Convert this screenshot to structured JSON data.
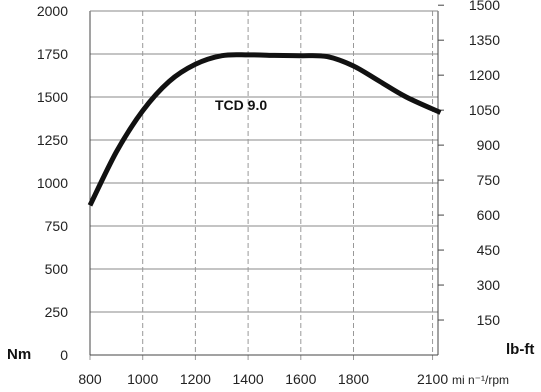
{
  "chart_data": {
    "type": "line",
    "xlabel": "mi n⁻¹/rpm",
    "ylabel": "Nm",
    "ylabel_right": "lb-ft",
    "xlim": [
      800,
      2130
    ],
    "ylim": [
      0,
      2000
    ],
    "ylim_right_note": "right axis shows same curve in lb-ft",
    "x_ticks": [
      800,
      1000,
      1200,
      1400,
      1600,
      1800,
      2100
    ],
    "y_ticks": [
      0,
      250,
      500,
      750,
      1000,
      1250,
      1500,
      1750,
      2000
    ],
    "y_ticks_right": [
      150,
      300,
      450,
      600,
      750,
      900,
      1050,
      1200,
      1350,
      1500
    ],
    "grid": true,
    "series": [
      {
        "name": "TCD 9.0",
        "x": [
          800,
          900,
          1000,
          1100,
          1200,
          1300,
          1400,
          1500,
          1600,
          1700,
          1800,
          1900,
          2000,
          2130
        ],
        "y": [
          870,
          1180,
          1420,
          1590,
          1690,
          1740,
          1745,
          1742,
          1740,
          1735,
          1680,
          1590,
          1500,
          1410
        ]
      }
    ]
  }
}
